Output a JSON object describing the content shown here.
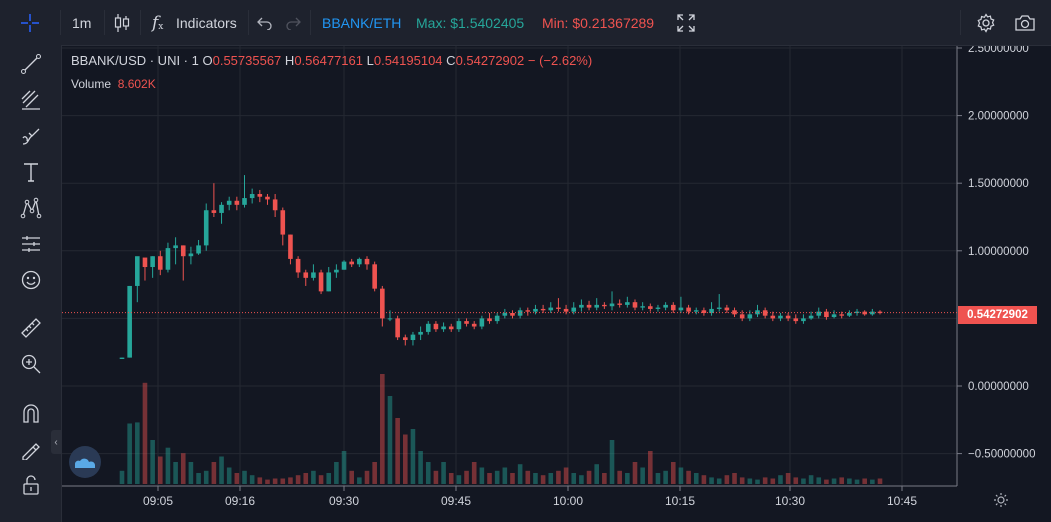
{
  "toolbar": {
    "interval": "1m",
    "indicators_label": "Indicators",
    "pair": "BBANK/ETH",
    "max_label": "Max: $1.5402405",
    "min_label": "Min: $0.21367289",
    "colors": {
      "pair": "#2196f3",
      "max": "#26a69a",
      "min": "#ef5350"
    }
  },
  "legend": {
    "symbol": "BBANK/USD · UNI · 1",
    "o_label": "O",
    "o_value": "0.55735567",
    "h_label": "H",
    "h_value": "0.56477161",
    "l_label": "L",
    "l_value": "0.54195104",
    "c_label": "C",
    "c_value": "0.54272902",
    "change": "− (−2.62%)",
    "volume_label": "Volume",
    "volume_value": "8.602K"
  },
  "sidebar_tools": [
    "crosshair-icon",
    "trend-line-icon",
    "fib-icon",
    "brush-icon",
    "text-icon",
    "pattern-icon",
    "prediction-icon",
    "emoji-icon",
    "ruler-icon",
    "zoom-in-icon",
    "magnet-icon",
    "lock-drawings-icon",
    "unlock-icon"
  ],
  "price_tag": "0.54272902",
  "chart_data": {
    "type": "candlestick",
    "x_ticks": [
      "09:05",
      "09:16",
      "09:30",
      "09:45",
      "10:00",
      "10:15",
      "10:30",
      "10:45"
    ],
    "y_ticks": [
      "2.50000000",
      "2.00000000",
      "1.50000000",
      "1.00000000",
      "0.00000000",
      "−0.50000000"
    ],
    "ylim": [
      -0.75,
      2.55
    ],
    "last_price": 0.54272902,
    "colors": {
      "up": "#26a69a",
      "down": "#ef5350"
    },
    "candles": [
      [
        0.2,
        0.21,
        0.2,
        0.21
      ],
      [
        0.21,
        0.74,
        0.21,
        0.74
      ],
      [
        0.74,
        0.96,
        0.62,
        0.95
      ],
      [
        0.95,
        0.88,
        0.78,
        0.92
      ],
      [
        0.88,
        0.96,
        0.8,
        0.96
      ],
      [
        0.96,
        0.86,
        0.82,
        1.0
      ],
      [
        0.86,
        1.02,
        0.84,
        1.06
      ],
      [
        1.02,
        1.04,
        0.9,
        1.1
      ],
      [
        1.04,
        0.96,
        0.78,
        1.04
      ],
      [
        0.96,
        0.98,
        0.9,
        1.03
      ],
      [
        0.98,
        1.04,
        0.97,
        1.08
      ],
      [
        1.04,
        1.3,
        1.0,
        1.35
      ],
      [
        1.3,
        1.28,
        1.25,
        1.5
      ],
      [
        1.28,
        1.34,
        1.2,
        1.36
      ],
      [
        1.34,
        1.37,
        1.3,
        1.4
      ],
      [
        1.37,
        1.34,
        1.3,
        1.4
      ],
      [
        1.34,
        1.39,
        1.32,
        1.56
      ],
      [
        1.39,
        1.42,
        1.35,
        1.46
      ],
      [
        1.42,
        1.4,
        1.36,
        1.45
      ],
      [
        1.4,
        1.38,
        1.34,
        1.42
      ],
      [
        1.38,
        1.3,
        1.25,
        1.42
      ],
      [
        1.3,
        1.12,
        1.04,
        1.32
      ],
      [
        1.12,
        0.94,
        0.9,
        1.12
      ],
      [
        0.94,
        0.84,
        0.8,
        0.96
      ],
      [
        0.84,
        0.8,
        0.74,
        0.86
      ],
      [
        0.8,
        0.84,
        0.78,
        0.9
      ],
      [
        0.84,
        0.7,
        0.68,
        0.86
      ],
      [
        0.7,
        0.84,
        0.7,
        0.88
      ],
      [
        0.84,
        0.86,
        0.8,
        0.9
      ],
      [
        0.86,
        0.92,
        0.86,
        0.93
      ],
      [
        0.92,
        0.9,
        0.88,
        0.94
      ],
      [
        0.9,
        0.94,
        0.88,
        0.95
      ],
      [
        0.94,
        0.9,
        0.86,
        0.96
      ],
      [
        0.9,
        0.72,
        0.7,
        0.92
      ],
      [
        0.72,
        0.5,
        0.44,
        0.74
      ],
      [
        0.5,
        0.5,
        0.48,
        0.56
      ],
      [
        0.5,
        0.36,
        0.34,
        0.52
      ],
      [
        0.36,
        0.34,
        0.3,
        0.38
      ],
      [
        0.34,
        0.38,
        0.3,
        0.4
      ],
      [
        0.38,
        0.4,
        0.34,
        0.44
      ],
      [
        0.4,
        0.46,
        0.38,
        0.48
      ],
      [
        0.46,
        0.42,
        0.4,
        0.48
      ],
      [
        0.42,
        0.44,
        0.4,
        0.47
      ],
      [
        0.44,
        0.42,
        0.4,
        0.46
      ],
      [
        0.42,
        0.48,
        0.4,
        0.5
      ],
      [
        0.48,
        0.46,
        0.44,
        0.5
      ],
      [
        0.46,
        0.44,
        0.42,
        0.48
      ],
      [
        0.44,
        0.5,
        0.42,
        0.52
      ],
      [
        0.5,
        0.48,
        0.46,
        0.54
      ],
      [
        0.48,
        0.52,
        0.46,
        0.54
      ],
      [
        0.52,
        0.54,
        0.5,
        0.57
      ],
      [
        0.54,
        0.52,
        0.5,
        0.56
      ],
      [
        0.52,
        0.56,
        0.5,
        0.58
      ],
      [
        0.56,
        0.55,
        0.52,
        0.58
      ],
      [
        0.55,
        0.57,
        0.53,
        0.6
      ],
      [
        0.57,
        0.56,
        0.54,
        0.6
      ],
      [
        0.56,
        0.58,
        0.54,
        0.62
      ],
      [
        0.58,
        0.57,
        0.55,
        0.65
      ],
      [
        0.57,
        0.55,
        0.53,
        0.6
      ],
      [
        0.55,
        0.58,
        0.53,
        0.62
      ],
      [
        0.58,
        0.6,
        0.55,
        0.64
      ],
      [
        0.6,
        0.58,
        0.56,
        0.63
      ],
      [
        0.58,
        0.6,
        0.56,
        0.65
      ],
      [
        0.6,
        0.59,
        0.57,
        0.62
      ],
      [
        0.59,
        0.61,
        0.56,
        0.7
      ],
      [
        0.61,
        0.6,
        0.58,
        0.64
      ],
      [
        0.6,
        0.62,
        0.58,
        0.66
      ],
      [
        0.62,
        0.58,
        0.56,
        0.64
      ],
      [
        0.58,
        0.59,
        0.56,
        0.62
      ],
      [
        0.59,
        0.57,
        0.55,
        0.61
      ],
      [
        0.57,
        0.58,
        0.55,
        0.6
      ],
      [
        0.58,
        0.6,
        0.56,
        0.62
      ],
      [
        0.6,
        0.56,
        0.54,
        0.62
      ],
      [
        0.56,
        0.58,
        0.54,
        0.66
      ],
      [
        0.58,
        0.55,
        0.53,
        0.6
      ],
      [
        0.55,
        0.56,
        0.53,
        0.58
      ],
      [
        0.56,
        0.54,
        0.52,
        0.58
      ],
      [
        0.54,
        0.57,
        0.52,
        0.62
      ],
      [
        0.57,
        0.58,
        0.55,
        0.68
      ],
      [
        0.58,
        0.56,
        0.54,
        0.6
      ],
      [
        0.56,
        0.53,
        0.51,
        0.58
      ],
      [
        0.53,
        0.5,
        0.48,
        0.56
      ],
      [
        0.5,
        0.53,
        0.48,
        0.56
      ],
      [
        0.53,
        0.56,
        0.51,
        0.6
      ],
      [
        0.56,
        0.52,
        0.5,
        0.58
      ],
      [
        0.52,
        0.5,
        0.48,
        0.55
      ],
      [
        0.5,
        0.52,
        0.48,
        0.54
      ],
      [
        0.52,
        0.5,
        0.48,
        0.54
      ],
      [
        0.5,
        0.48,
        0.46,
        0.53
      ],
      [
        0.48,
        0.5,
        0.46,
        0.53
      ],
      [
        0.5,
        0.52,
        0.49,
        0.55
      ],
      [
        0.52,
        0.55,
        0.5,
        0.58
      ],
      [
        0.55,
        0.51,
        0.49,
        0.57
      ],
      [
        0.51,
        0.53,
        0.5,
        0.56
      ],
      [
        0.53,
        0.52,
        0.5,
        0.55
      ],
      [
        0.52,
        0.54,
        0.51,
        0.56
      ],
      [
        0.54,
        0.55,
        0.52,
        0.57
      ],
      [
        0.55,
        0.53,
        0.52,
        0.56
      ],
      [
        0.53,
        0.55,
        0.52,
        0.57
      ],
      [
        0.55,
        0.54,
        0.53,
        0.56
      ]
    ],
    "volumes": [
      0.12,
      0.55,
      0.56,
      0.92,
      0.4,
      0.25,
      0.33,
      0.2,
      0.28,
      0.2,
      0.1,
      0.12,
      0.2,
      0.25,
      0.15,
      0.1,
      0.12,
      0.08,
      0.06,
      0.04,
      0.05,
      0.05,
      0.06,
      0.08,
      0.1,
      0.12,
      0.08,
      0.1,
      0.2,
      0.3,
      0.12,
      0.06,
      0.12,
      0.2,
      1.0,
      0.8,
      0.6,
      0.45,
      0.5,
      0.3,
      0.2,
      0.12,
      0.2,
      0.1,
      0.08,
      0.12,
      0.2,
      0.15,
      0.1,
      0.12,
      0.15,
      0.1,
      0.18,
      0.12,
      0.1,
      0.08,
      0.1,
      0.12,
      0.15,
      0.1,
      0.08,
      0.12,
      0.18,
      0.1,
      0.4,
      0.12,
      0.1,
      0.2,
      0.15,
      0.3,
      0.1,
      0.12,
      0.2,
      0.15,
      0.12,
      0.1,
      0.08,
      0.06,
      0.05,
      0.08,
      0.1,
      0.06,
      0.05,
      0.04,
      0.06,
      0.05,
      0.08,
      0.1,
      0.06,
      0.05,
      0.08,
      0.06,
      0.04,
      0.05,
      0.06,
      0.05,
      0.04,
      0.05,
      0.04,
      0.05
    ]
  }
}
